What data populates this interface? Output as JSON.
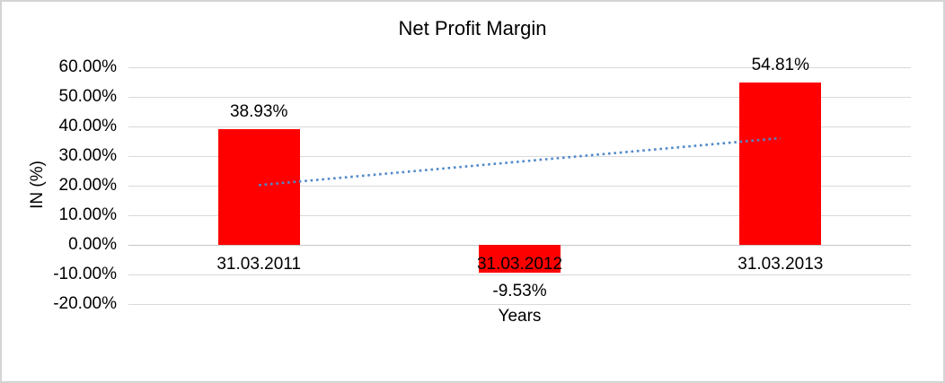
{
  "chart_data": {
    "type": "bar",
    "title": "Net Profit Margin",
    "xlabel": "Years",
    "ylabel": "IN (%)",
    "categories": [
      "31.03.2011",
      "31.03.2012",
      "31.03.2013"
    ],
    "values": [
      38.93,
      -9.53,
      54.81
    ],
    "data_labels": [
      "38.93%",
      "-9.53%",
      "54.81%"
    ],
    "yticks": [
      "60.00%",
      "50.00%",
      "40.00%",
      "30.00%",
      "20.00%",
      "10.00%",
      "0.00%",
      "-10.00%",
      "-20.00%"
    ],
    "ylim": [
      -20,
      60
    ],
    "ytick_step": 10,
    "grid": true,
    "legend_position": "none",
    "bar_color": "#FF0000",
    "gridline_color": "#D9D9D9",
    "trendline": {
      "type": "linear",
      "style": "dotted",
      "color": "#5089C9",
      "start_value": 20.13,
      "end_value": 36.01
    }
  }
}
